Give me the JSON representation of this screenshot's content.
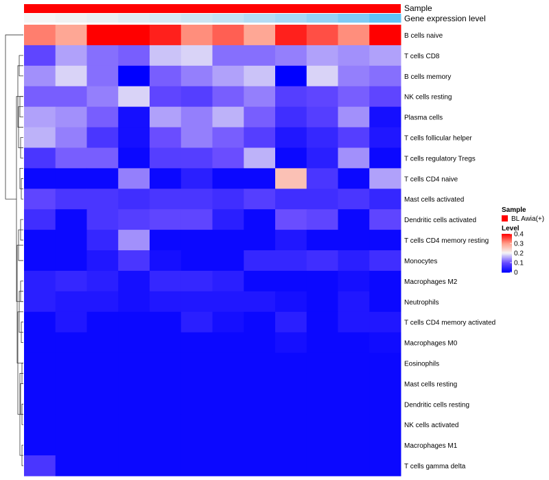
{
  "chart_data": {
    "type": "heatmap",
    "annotation_labels": [
      "Sample",
      "Gene expression level"
    ],
    "sample_legend": {
      "title": "Sample",
      "entries": [
        {
          "label": "BL Awia(+)",
          "color": "#ff0000"
        }
      ]
    },
    "level_legend": {
      "title": "Level",
      "ticks": [
        "0.4",
        "0.3",
        "0.2",
        "0.1",
        "0"
      ],
      "tick_values": [
        0.4,
        0.3,
        0.2,
        0.1,
        0
      ]
    },
    "sample_bar_color": "#ff0000",
    "expression_bar_colors": [
      "#f5f5f5",
      "#f0f2f3",
      "#e9eff3",
      "#e0ebf3",
      "#d6e8f4",
      "#cce5f3",
      "#c2e2f4",
      "#b4dcf4",
      "#a6d8f6",
      "#95d2f6",
      "#7fcbf5",
      "#5fc3f5"
    ],
    "color_scale": {
      "domain": [
        0,
        0.1,
        0.2,
        0.3,
        0.4
      ],
      "colors": [
        "#0000ff",
        "#6a4dff",
        "#f5f5f5",
        "#ff9e8a",
        "#ff0000"
      ]
    },
    "columns": 12,
    "rows": [
      {
        "label": "B cells naive",
        "values": [
          0.32,
          0.29,
          0.42,
          0.41,
          0.38,
          0.31,
          0.34,
          0.29,
          0.38,
          0.35,
          0.31,
          0.42
        ]
      },
      {
        "label": "T cells CD8",
        "values": [
          0.09,
          0.15,
          0.12,
          0.11,
          0.17,
          0.18,
          0.12,
          0.12,
          0.13,
          0.15,
          0.14,
          0.15
        ]
      },
      {
        "label": "B cells memory",
        "values": [
          0.14,
          0.18,
          0.12,
          0.0,
          0.11,
          0.13,
          0.15,
          0.17,
          0.0,
          0.18,
          0.13,
          0.12
        ]
      },
      {
        "label": "NK cells resting",
        "values": [
          0.11,
          0.11,
          0.13,
          0.18,
          0.09,
          0.08,
          0.11,
          0.13,
          0.08,
          0.09,
          0.11,
          0.09
        ]
      },
      {
        "label": "Plasma cells",
        "values": [
          0.15,
          0.14,
          0.11,
          0.02,
          0.15,
          0.13,
          0.16,
          0.11,
          0.06,
          0.08,
          0.14,
          0.02
        ]
      },
      {
        "label": "T cells follicular helper",
        "values": [
          0.16,
          0.13,
          0.07,
          0.02,
          0.1,
          0.13,
          0.11,
          0.08,
          0.03,
          0.05,
          0.08,
          0.03
        ]
      },
      {
        "label": "T cells regulatory  Tregs",
        "values": [
          0.07,
          0.11,
          0.11,
          0.01,
          0.08,
          0.08,
          0.1,
          0.16,
          0.01,
          0.04,
          0.14,
          0.01
        ]
      },
      {
        "label": "T cells CD4 naive",
        "values": [
          0.01,
          0.01,
          0.01,
          0.13,
          0.01,
          0.04,
          0.01,
          0.01,
          0.26,
          0.07,
          0.01,
          0.15
        ]
      },
      {
        "label": "Mast cells activated",
        "values": [
          0.09,
          0.07,
          0.07,
          0.06,
          0.07,
          0.07,
          0.06,
          0.08,
          0.06,
          0.06,
          0.07,
          0.05
        ]
      },
      {
        "label": "Dendritic cells activated",
        "values": [
          0.06,
          0.01,
          0.07,
          0.08,
          0.09,
          0.09,
          0.04,
          0.01,
          0.1,
          0.09,
          0.01,
          0.09
        ]
      },
      {
        "label": "T cells CD4 memory resting",
        "values": [
          0.01,
          0.01,
          0.05,
          0.14,
          0.01,
          0.01,
          0.01,
          0.01,
          0.03,
          0.01,
          0.01,
          0.01
        ]
      },
      {
        "label": "Monocytes",
        "values": [
          0.01,
          0.01,
          0.03,
          0.07,
          0.02,
          0.01,
          0.01,
          0.05,
          0.05,
          0.06,
          0.04,
          0.06
        ]
      },
      {
        "label": "Macrophages M2",
        "values": [
          0.04,
          0.05,
          0.04,
          0.02,
          0.05,
          0.05,
          0.04,
          0.01,
          0.01,
          0.01,
          0.02,
          0.01
        ]
      },
      {
        "label": "Neutrophils",
        "values": [
          0.04,
          0.03,
          0.03,
          0.02,
          0.03,
          0.03,
          0.03,
          0.03,
          0.02,
          0.01,
          0.03,
          0.01
        ]
      },
      {
        "label": "T cells CD4 memory activated",
        "values": [
          0.01,
          0.03,
          0.01,
          0.01,
          0.01,
          0.04,
          0.02,
          0.01,
          0.04,
          0.01,
          0.03,
          0.03
        ]
      },
      {
        "label": "Macrophages M0",
        "values": [
          0.01,
          0.01,
          0.01,
          0.01,
          0.01,
          0.01,
          0.01,
          0.01,
          0.02,
          0.01,
          0.01,
          0.015
        ]
      },
      {
        "label": "Eosinophils",
        "values": [
          0.01,
          0.01,
          0.01,
          0.01,
          0.01,
          0.01,
          0.01,
          0.01,
          0.01,
          0.01,
          0.01,
          0.01
        ]
      },
      {
        "label": "Mast cells resting",
        "values": [
          0.01,
          0.01,
          0.01,
          0.01,
          0.01,
          0.01,
          0.01,
          0.01,
          0.01,
          0.01,
          0.01,
          0.01
        ]
      },
      {
        "label": "Dendritic cells resting",
        "values": [
          0.01,
          0.01,
          0.01,
          0.01,
          0.01,
          0.01,
          0.01,
          0.01,
          0.01,
          0.01,
          0.01,
          0.01
        ]
      },
      {
        "label": "NK cells activated",
        "values": [
          0.01,
          0.01,
          0.01,
          0.01,
          0.01,
          0.01,
          0.01,
          0.01,
          0.01,
          0.01,
          0.01,
          0.01
        ]
      },
      {
        "label": "Macrophages M1",
        "values": [
          0.01,
          0.01,
          0.01,
          0.01,
          0.01,
          0.01,
          0.01,
          0.01,
          0.01,
          0.01,
          0.01,
          0.01
        ]
      },
      {
        "label": "T cells gamma delta",
        "values": [
          0.07,
          0.01,
          0.01,
          0.01,
          0.01,
          0.01,
          0.01,
          0.01,
          0.01,
          0.01,
          0.01,
          0.01
        ]
      }
    ]
  }
}
